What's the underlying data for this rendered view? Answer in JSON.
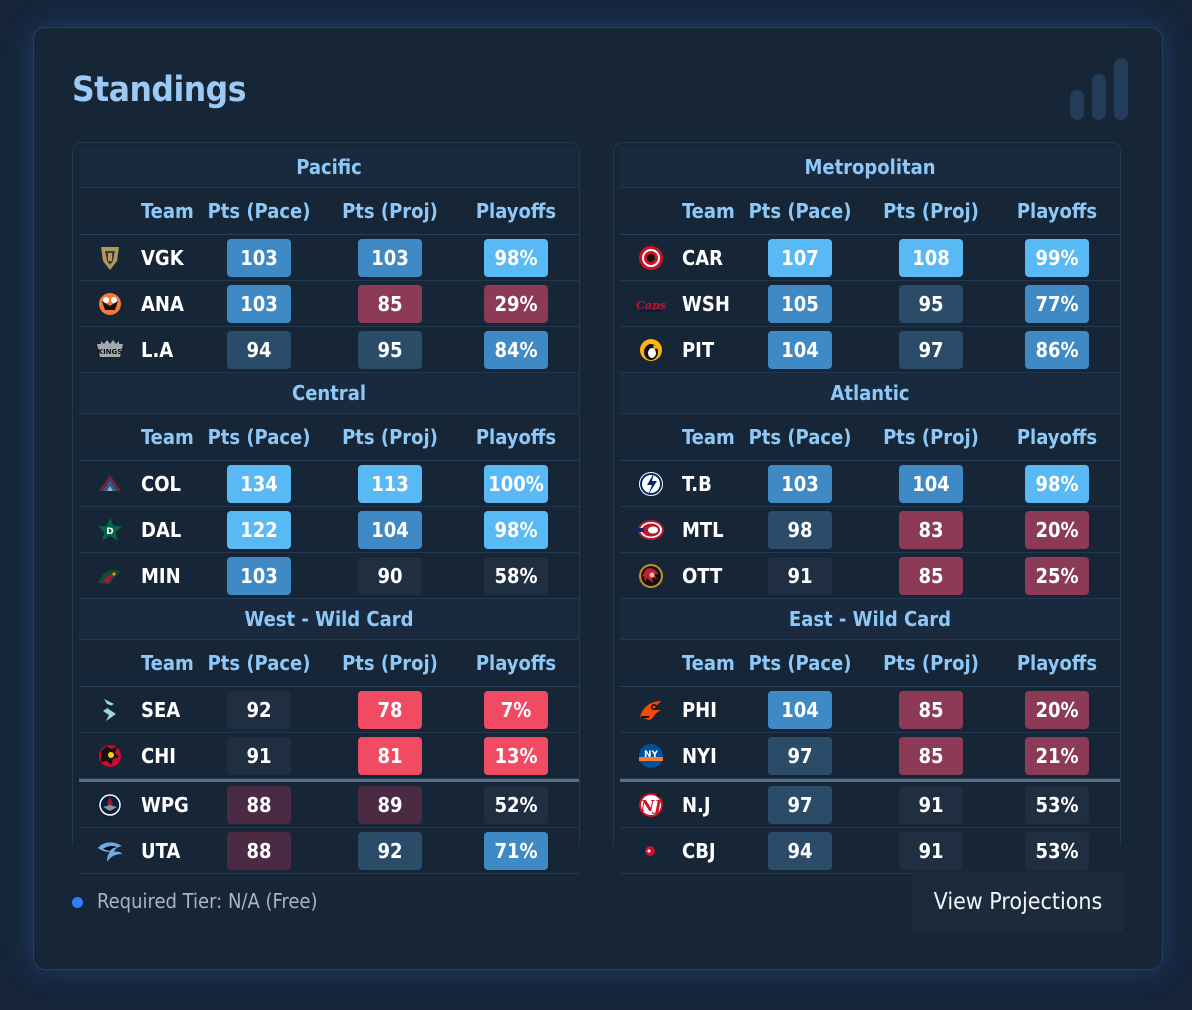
{
  "title": "Standings",
  "icons": {
    "header": "bar-chart-icon"
  },
  "colors": {
    "accent": "#8ec8f8",
    "tiers": {
      "very_high": "#58b9f4",
      "high": "#3f89c4",
      "mid": "#2b4c69",
      "low": "#1f2e40",
      "below": "#4a2b43",
      "bad": "#8c3a55",
      "very_bad": "#f04b63"
    }
  },
  "columns": {
    "team": "Team",
    "pace": "Pts (Pace)",
    "proj": "Pts (Proj)",
    "playoffs": "Playoffs"
  },
  "west": [
    {
      "name": "Pacific",
      "rows": [
        {
          "team": "VGK",
          "icon": "vgk-logo-icon",
          "pace": "103",
          "pace_tier": "high",
          "proj": "103",
          "proj_tier": "high",
          "playoffs": "98%",
          "playoffs_tier": "very_high"
        },
        {
          "team": "ANA",
          "icon": "ana-logo-icon",
          "pace": "103",
          "pace_tier": "high",
          "proj": "85",
          "proj_tier": "bad",
          "playoffs": "29%",
          "playoffs_tier": "bad"
        },
        {
          "team": "L.A",
          "icon": "la-logo-icon",
          "pace": "94",
          "pace_tier": "mid",
          "proj": "95",
          "proj_tier": "mid",
          "playoffs": "84%",
          "playoffs_tier": "high"
        }
      ]
    },
    {
      "name": "Central",
      "rows": [
        {
          "team": "COL",
          "icon": "col-logo-icon",
          "pace": "134",
          "pace_tier": "very_high",
          "proj": "113",
          "proj_tier": "very_high",
          "playoffs": "100%",
          "playoffs_tier": "very_high"
        },
        {
          "team": "DAL",
          "icon": "dal-logo-icon",
          "pace": "122",
          "pace_tier": "very_high",
          "proj": "104",
          "proj_tier": "high",
          "playoffs": "98%",
          "playoffs_tier": "very_high"
        },
        {
          "team": "MIN",
          "icon": "min-logo-icon",
          "pace": "103",
          "pace_tier": "high",
          "proj": "90",
          "proj_tier": "low",
          "playoffs": "58%",
          "playoffs_tier": "low"
        }
      ]
    },
    {
      "name": "West - Wild Card",
      "rows": [
        {
          "team": "SEA",
          "icon": "sea-logo-icon",
          "pace": "92",
          "pace_tier": "low",
          "proj": "78",
          "proj_tier": "very_bad",
          "playoffs": "7%",
          "playoffs_tier": "very_bad"
        },
        {
          "team": "CHI",
          "icon": "chi-logo-icon",
          "pace": "91",
          "pace_tier": "low",
          "proj": "81",
          "proj_tier": "very_bad",
          "playoffs": "13%",
          "playoffs_tier": "very_bad"
        },
        {
          "team": "WPG",
          "icon": "wpg-logo-icon",
          "pace": "88",
          "pace_tier": "below",
          "proj": "89",
          "proj_tier": "below",
          "playoffs": "52%",
          "playoffs_tier": "low",
          "separator": true
        },
        {
          "team": "UTA",
          "icon": "uta-logo-icon",
          "pace": "88",
          "pace_tier": "below",
          "proj": "92",
          "proj_tier": "mid",
          "playoffs": "71%",
          "playoffs_tier": "high"
        }
      ]
    }
  ],
  "east": [
    {
      "name": "Metropolitan",
      "rows": [
        {
          "team": "CAR",
          "icon": "car-logo-icon",
          "pace": "107",
          "pace_tier": "very_high",
          "proj": "108",
          "proj_tier": "very_high",
          "playoffs": "99%",
          "playoffs_tier": "very_high"
        },
        {
          "team": "WSH",
          "icon": "wsh-logo-icon",
          "pace": "105",
          "pace_tier": "high",
          "proj": "95",
          "proj_tier": "mid",
          "playoffs": "77%",
          "playoffs_tier": "high"
        },
        {
          "team": "PIT",
          "icon": "pit-logo-icon",
          "pace": "104",
          "pace_tier": "high",
          "proj": "97",
          "proj_tier": "mid",
          "playoffs": "86%",
          "playoffs_tier": "high"
        }
      ]
    },
    {
      "name": "Atlantic",
      "rows": [
        {
          "team": "T.B",
          "icon": "tb-logo-icon",
          "pace": "103",
          "pace_tier": "high",
          "proj": "104",
          "proj_tier": "high",
          "playoffs": "98%",
          "playoffs_tier": "very_high"
        },
        {
          "team": "MTL",
          "icon": "mtl-logo-icon",
          "pace": "98",
          "pace_tier": "mid",
          "proj": "83",
          "proj_tier": "bad",
          "playoffs": "20%",
          "playoffs_tier": "bad"
        },
        {
          "team": "OTT",
          "icon": "ott-logo-icon",
          "pace": "91",
          "pace_tier": "low",
          "proj": "85",
          "proj_tier": "bad",
          "playoffs": "25%",
          "playoffs_tier": "bad"
        }
      ]
    },
    {
      "name": "East - Wild Card",
      "rows": [
        {
          "team": "PHI",
          "icon": "phi-logo-icon",
          "pace": "104",
          "pace_tier": "high",
          "proj": "85",
          "proj_tier": "bad",
          "playoffs": "20%",
          "playoffs_tier": "bad"
        },
        {
          "team": "NYI",
          "icon": "nyi-logo-icon",
          "pace": "97",
          "pace_tier": "mid",
          "proj": "85",
          "proj_tier": "bad",
          "playoffs": "21%",
          "playoffs_tier": "bad"
        },
        {
          "team": "N.J",
          "icon": "nj-logo-icon",
          "pace": "97",
          "pace_tier": "mid",
          "proj": "91",
          "proj_tier": "low",
          "playoffs": "53%",
          "playoffs_tier": "low",
          "separator": true
        },
        {
          "team": "CBJ",
          "icon": "cbj-logo-icon",
          "pace": "94",
          "pace_tier": "mid",
          "proj": "91",
          "proj_tier": "low",
          "playoffs": "53%",
          "playoffs_tier": "low"
        }
      ]
    }
  ],
  "footer": {
    "tier_label": "Required Tier: N/A (Free)",
    "button_label": "View Projections"
  }
}
